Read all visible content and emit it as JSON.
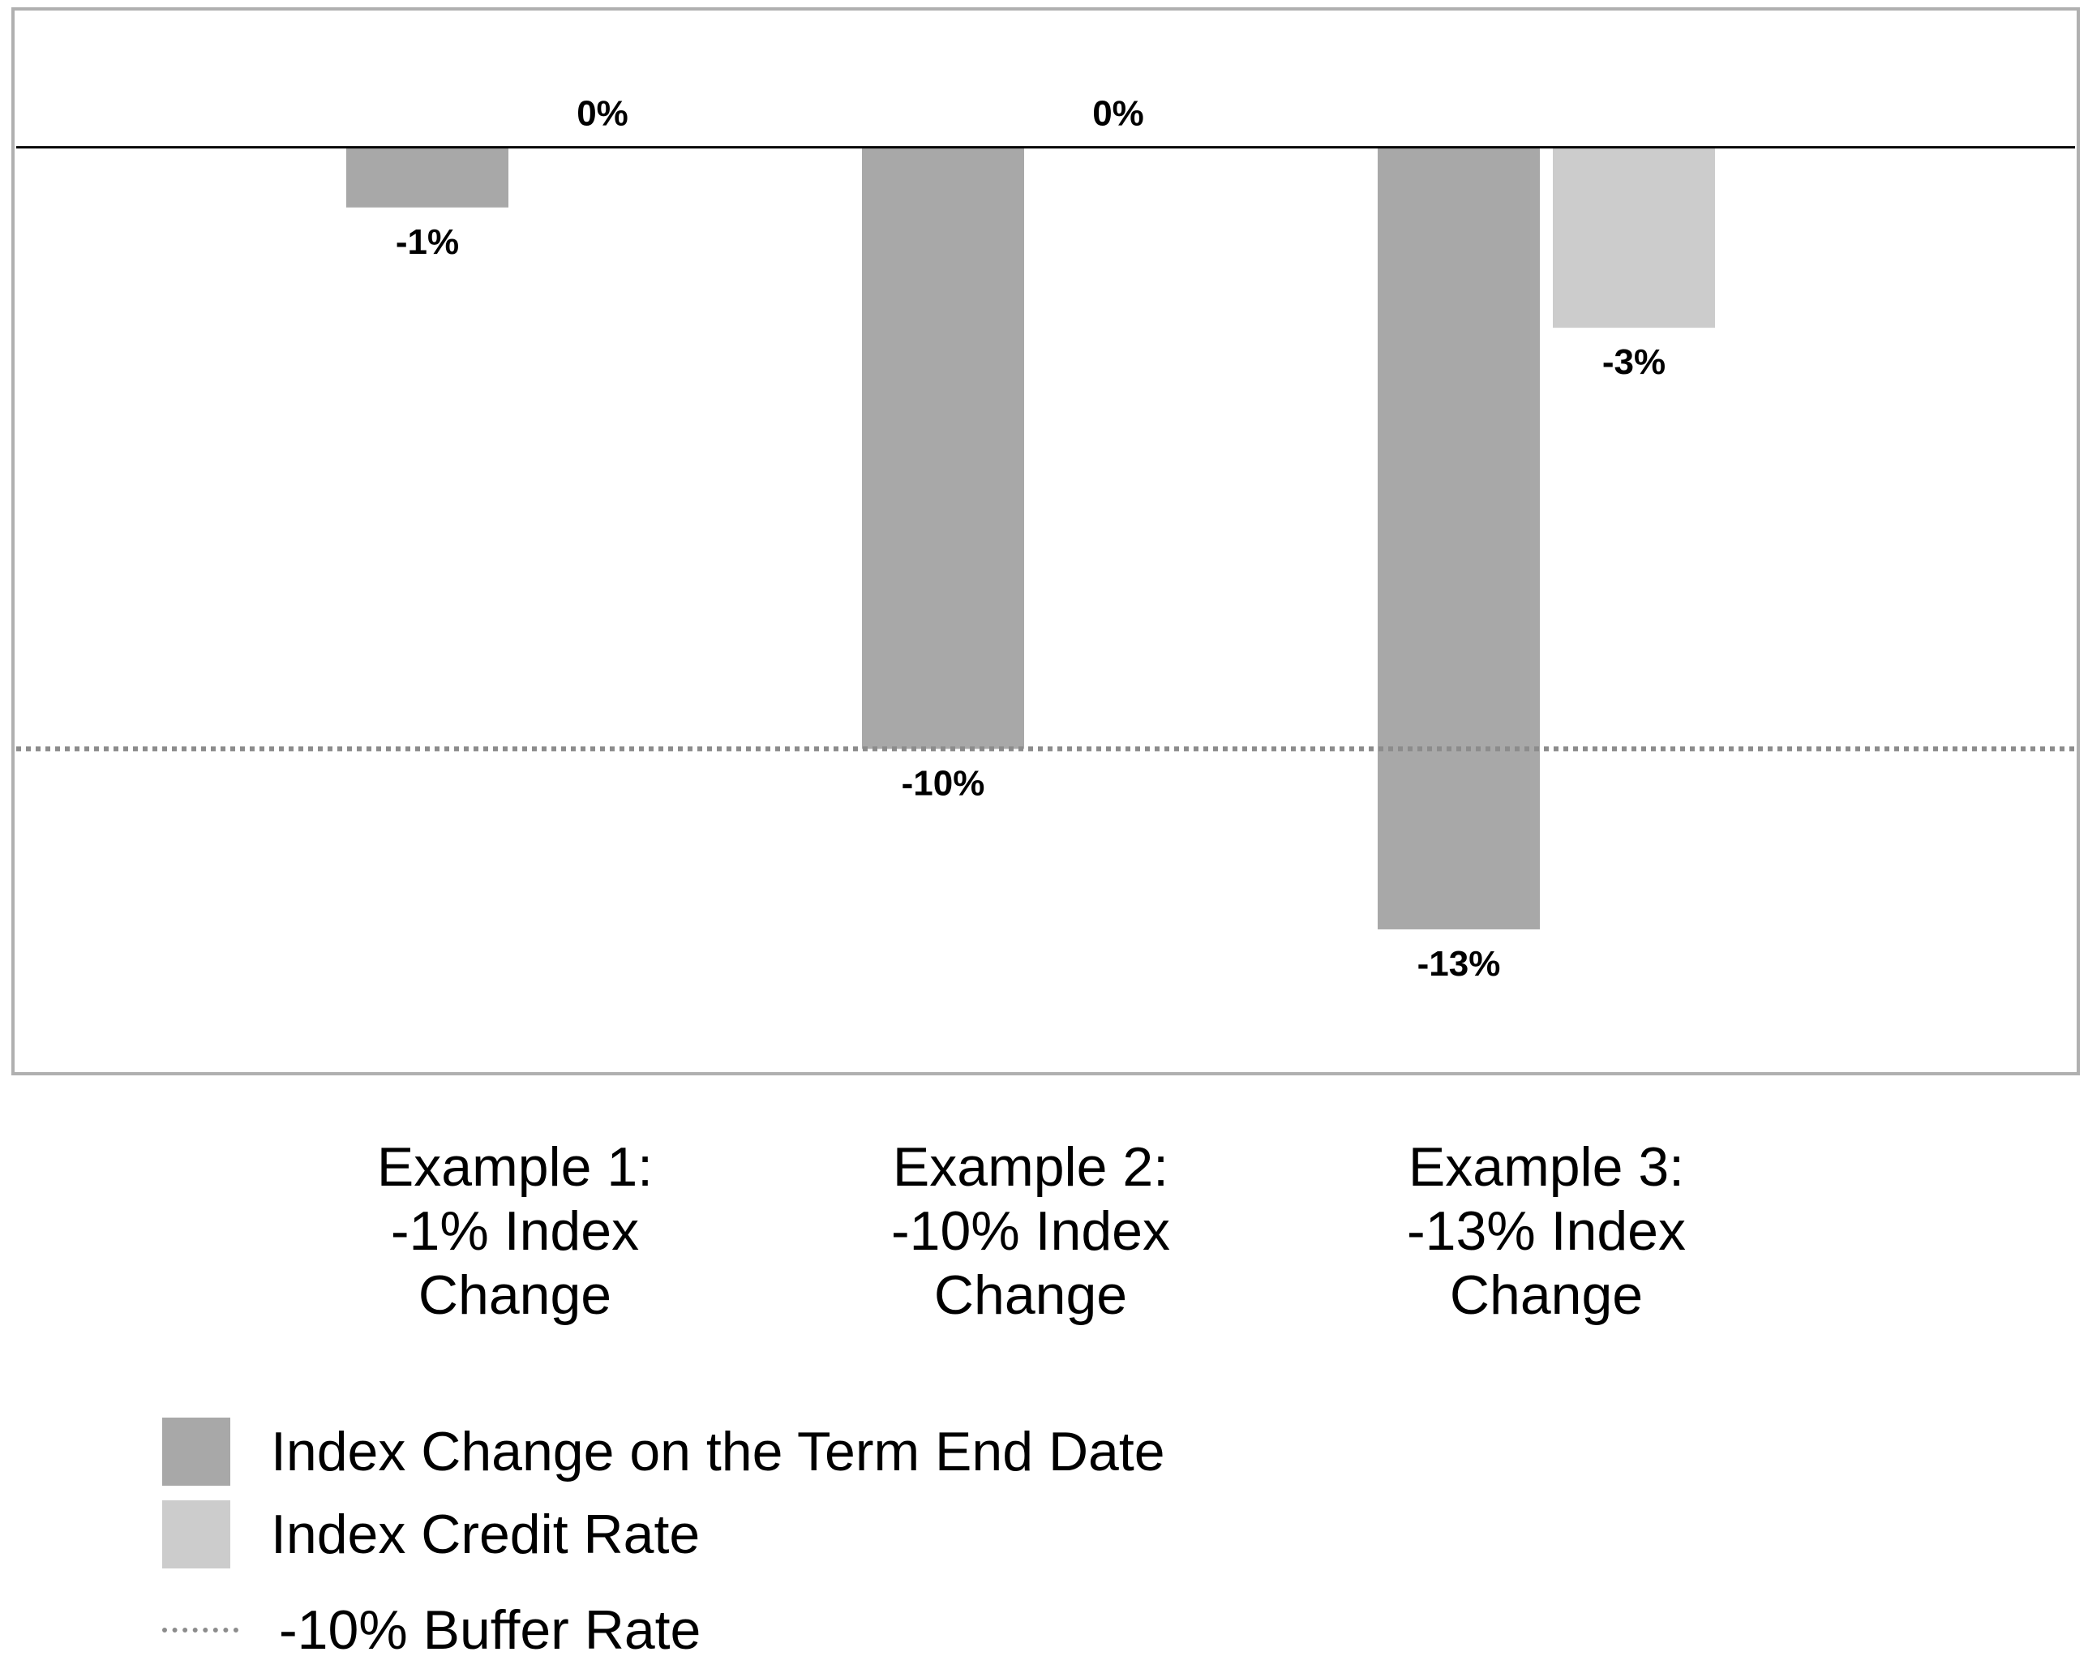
{
  "chart_data": {
    "type": "bar",
    "title": "",
    "xlabel": "",
    "ylabel": "",
    "ylim": [
      -15.4,
      2.3
    ],
    "categories": [
      "Example 1:\n-1% Index\nChange",
      "Example 2:\n-10% Index\nChange",
      "Example 3:\n-13% Index\nChange"
    ],
    "series": [
      {
        "name": "Index Change on the Term End Date",
        "color": "#a8a8a8",
        "values": [
          -1,
          -10,
          -13
        ],
        "labels": [
          "-1%",
          "-10%",
          "-13%"
        ]
      },
      {
        "name": "Index Credit Rate",
        "color": "#cccccc",
        "values": [
          0,
          0,
          -3
        ],
        "labels": [
          "0%",
          "0%",
          "-3%"
        ]
      }
    ],
    "reference_lines": [
      {
        "name": "-10% Buffer Rate",
        "value": -10,
        "style": "dotted",
        "color": "#8c8c8c"
      }
    ],
    "zero_line_color": "#000000",
    "frame_color": "#b0b0b0",
    "grid": false,
    "legend_position": "bottom-left"
  }
}
